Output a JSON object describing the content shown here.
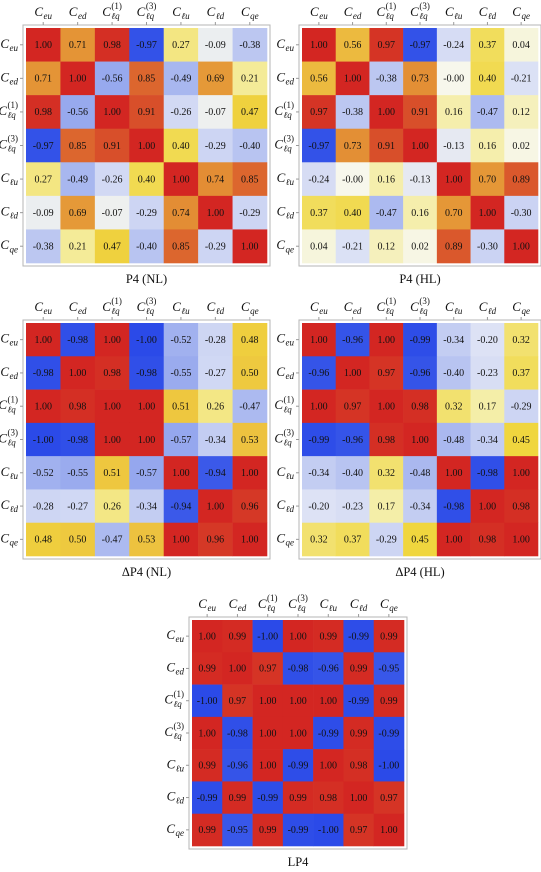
{
  "chart_data": [
    {
      "type": "heatmap",
      "title": "P4 (NL)",
      "x_labels": [
        [
          "C",
          "eu"
        ],
        [
          "C",
          "ed"
        ],
        [
          "C",
          "ℓq",
          "(1)"
        ],
        [
          "C",
          "ℓq",
          "(3)"
        ],
        [
          "C",
          "ℓu"
        ],
        [
          "C",
          "ℓd"
        ],
        [
          "C",
          "qe"
        ]
      ],
      "y_labels": [
        [
          "C",
          "eu"
        ],
        [
          "C",
          "ed"
        ],
        [
          "C",
          "ℓq",
          "(1)"
        ],
        [
          "C",
          "ℓq",
          "(3)"
        ],
        [
          "C",
          "ℓu"
        ],
        [
          "C",
          "ℓd"
        ],
        [
          "C",
          "qe"
        ]
      ],
      "values": [
        [
          1.0,
          0.71,
          0.98,
          -0.97,
          0.27,
          -0.09,
          -0.38
        ],
        [
          0.71,
          1.0,
          -0.56,
          0.85,
          -0.49,
          0.69,
          0.21
        ],
        [
          0.98,
          -0.56,
          1.0,
          0.91,
          -0.26,
          -0.07,
          0.47
        ],
        [
          -0.97,
          0.85,
          0.91,
          1.0,
          0.4,
          -0.29,
          -0.4
        ],
        [
          0.27,
          -0.49,
          -0.26,
          0.4,
          1.0,
          0.74,
          0.85
        ],
        [
          -0.09,
          0.69,
          -0.07,
          -0.29,
          0.74,
          1.0,
          -0.29
        ],
        [
          -0.38,
          0.21,
          0.47,
          -0.4,
          0.85,
          -0.29,
          1.0
        ]
      ],
      "value_labels": [
        [
          "1.00",
          "0.71",
          "0.98",
          "-0.97",
          "0.27",
          "-0.09",
          "-0.38"
        ],
        [
          "0.71",
          "1.00",
          "-0.56",
          "0.85",
          "-0.49",
          "0.69",
          "0.21"
        ],
        [
          "0.98",
          "-0.56",
          "1.00",
          "0.91",
          "-0.26",
          "-0.07",
          "0.47"
        ],
        [
          "-0.97",
          "0.85",
          "0.91",
          "1.00",
          "0.40",
          "-0.29",
          "-0.40"
        ],
        [
          "0.27",
          "-0.49",
          "-0.26",
          "0.40",
          "1.00",
          "0.74",
          "0.85"
        ],
        [
          "-0.09",
          "0.69",
          "-0.07",
          "-0.29",
          "0.74",
          "1.00",
          "-0.29"
        ],
        [
          "-0.38",
          "0.21",
          "0.47",
          "-0.40",
          "0.85",
          "-0.29",
          "1.00"
        ]
      ],
      "colorscale": [
        [
          -1,
          "#2b4ae8"
        ],
        [
          -0.9,
          "#4563e9"
        ],
        [
          -0.5,
          "#a6b5ef"
        ],
        [
          -0.2,
          "#dde2f5"
        ],
        [
          0,
          "#f7f7ec"
        ],
        [
          0.2,
          "#f4ec9c"
        ],
        [
          0.45,
          "#f0d63e"
        ],
        [
          0.6,
          "#eab040"
        ],
        [
          0.75,
          "#e28a33"
        ],
        [
          0.9,
          "#d9542b"
        ],
        [
          1,
          "#d32622"
        ]
      ]
    },
    {
      "type": "heatmap",
      "title": "P4 (HL)",
      "x_labels": [
        [
          "C",
          "eu"
        ],
        [
          "C",
          "ed"
        ],
        [
          "C",
          "ℓq",
          "(1)"
        ],
        [
          "C",
          "ℓq",
          "(3)"
        ],
        [
          "C",
          "ℓu"
        ],
        [
          "C",
          "ℓd"
        ],
        [
          "C",
          "qe"
        ]
      ],
      "y_labels": [
        [
          "C",
          "eu"
        ],
        [
          "C",
          "ed"
        ],
        [
          "C",
          "ℓq",
          "(1)"
        ],
        [
          "C",
          "ℓq",
          "(3)"
        ],
        [
          "C",
          "ℓu"
        ],
        [
          "C",
          "ℓd"
        ],
        [
          "C",
          "qe"
        ]
      ],
      "values": [
        [
          1.0,
          0.56,
          0.97,
          -0.97,
          -0.24,
          0.37,
          0.04
        ],
        [
          0.56,
          1.0,
          -0.38,
          0.73,
          -0.0,
          0.4,
          -0.21
        ],
        [
          0.97,
          -0.38,
          1.0,
          0.91,
          0.16,
          -0.47,
          0.12
        ],
        [
          -0.97,
          0.73,
          0.91,
          1.0,
          -0.13,
          0.16,
          0.02
        ],
        [
          -0.24,
          -0.0,
          0.16,
          -0.13,
          1.0,
          0.7,
          0.89
        ],
        [
          0.37,
          0.4,
          -0.47,
          0.16,
          0.7,
          1.0,
          -0.3
        ],
        [
          0.04,
          -0.21,
          0.12,
          0.02,
          0.89,
          -0.3,
          1.0
        ]
      ],
      "value_labels": [
        [
          "1.00",
          "0.56",
          "0.97",
          "-0.97",
          "-0.24",
          "0.37",
          "0.04"
        ],
        [
          "0.56",
          "1.00",
          "-0.38",
          "0.73",
          "-0.00",
          "0.40",
          "-0.21"
        ],
        [
          "0.97",
          "-0.38",
          "1.00",
          "0.91",
          "0.16",
          "-0.47",
          "0.12"
        ],
        [
          "-0.97",
          "0.73",
          "0.91",
          "1.00",
          "-0.13",
          "0.16",
          "0.02"
        ],
        [
          "-0.24",
          "-0.00",
          "0.16",
          "-0.13",
          "1.00",
          "0.70",
          "0.89"
        ],
        [
          "0.37",
          "0.40",
          "-0.47",
          "0.16",
          "0.70",
          "1.00",
          "-0.30"
        ],
        [
          "0.04",
          "-0.21",
          "0.12",
          "0.02",
          "0.89",
          "-0.30",
          "1.00"
        ]
      ],
      "colorscale": [
        [
          -1,
          "#2b4ae8"
        ],
        [
          -0.9,
          "#4563e9"
        ],
        [
          -0.5,
          "#a6b5ef"
        ],
        [
          -0.2,
          "#dde2f5"
        ],
        [
          0,
          "#f7f7ec"
        ],
        [
          0.2,
          "#f4ec9c"
        ],
        [
          0.45,
          "#f0d63e"
        ],
        [
          0.6,
          "#eab040"
        ],
        [
          0.75,
          "#e28a33"
        ],
        [
          0.9,
          "#d9542b"
        ],
        [
          1,
          "#d32622"
        ]
      ]
    },
    {
      "type": "heatmap",
      "title": "ΔP4 (NL)",
      "x_labels": [
        [
          "C",
          "eu"
        ],
        [
          "C",
          "ed"
        ],
        [
          "C",
          "ℓq",
          "(1)"
        ],
        [
          "C",
          "ℓq",
          "(3)"
        ],
        [
          "C",
          "ℓu"
        ],
        [
          "C",
          "ℓd"
        ],
        [
          "C",
          "qe"
        ]
      ],
      "y_labels": [
        [
          "C",
          "eu"
        ],
        [
          "C",
          "ed"
        ],
        [
          "C",
          "ℓq",
          "(1)"
        ],
        [
          "C",
          "ℓq",
          "(3)"
        ],
        [
          "C",
          "ℓu"
        ],
        [
          "C",
          "ℓd"
        ],
        [
          "C",
          "qe"
        ]
      ],
      "values": [
        [
          1.0,
          -0.98,
          1.0,
          -1.0,
          -0.52,
          -0.28,
          0.48
        ],
        [
          -0.98,
          1.0,
          0.98,
          -0.98,
          -0.55,
          -0.27,
          0.5
        ],
        [
          1.0,
          0.98,
          1.0,
          1.0,
          0.51,
          0.26,
          -0.47
        ],
        [
          -1.0,
          -0.98,
          1.0,
          1.0,
          -0.57,
          -0.34,
          0.53
        ],
        [
          -0.52,
          -0.55,
          0.51,
          -0.57,
          1.0,
          -0.94,
          1.0
        ],
        [
          -0.28,
          -0.27,
          0.26,
          -0.34,
          -0.94,
          1.0,
          0.96
        ],
        [
          0.48,
          0.5,
          -0.47,
          0.53,
          1.0,
          0.96,
          1.0
        ]
      ],
      "value_labels": [
        [
          "1.00",
          "-0.98",
          "1.00",
          "-1.00",
          "-0.52",
          "-0.28",
          "0.48"
        ],
        [
          "-0.98",
          "1.00",
          "0.98",
          "-0.98",
          "-0.55",
          "-0.27",
          "0.50"
        ],
        [
          "1.00",
          "0.98",
          "1.00",
          "1.00",
          "0.51",
          "0.26",
          "-0.47"
        ],
        [
          "-1.00",
          "-0.98",
          "1.00",
          "1.00",
          "-0.57",
          "-0.34",
          "0.53"
        ],
        [
          "-0.52",
          "-0.55",
          "0.51",
          "-0.57",
          "1.00",
          "-0.94",
          "1.00"
        ],
        [
          "-0.28",
          "-0.27",
          "0.26",
          "-0.34",
          "-0.94",
          "1.00",
          "0.96"
        ],
        [
          "0.48",
          "0.50",
          "-0.47",
          "0.53",
          "1.00",
          "0.96",
          "1.00"
        ]
      ],
      "colorscale": [
        [
          -1,
          "#2b4ae8"
        ],
        [
          -0.9,
          "#4563e9"
        ],
        [
          -0.5,
          "#a6b5ef"
        ],
        [
          -0.2,
          "#dde2f5"
        ],
        [
          0,
          "#f7f7ec"
        ],
        [
          0.2,
          "#f4ec9c"
        ],
        [
          0.45,
          "#f0d63e"
        ],
        [
          0.6,
          "#eab040"
        ],
        [
          0.75,
          "#e28a33"
        ],
        [
          0.9,
          "#d9542b"
        ],
        [
          1,
          "#d32622"
        ]
      ]
    },
    {
      "type": "heatmap",
      "title": "ΔP4 (HL)",
      "x_labels": [
        [
          "C",
          "eu"
        ],
        [
          "C",
          "ed"
        ],
        [
          "C",
          "ℓq",
          "(1)"
        ],
        [
          "C",
          "ℓq",
          "(3)"
        ],
        [
          "C",
          "ℓu"
        ],
        [
          "C",
          "ℓd"
        ],
        [
          "C",
          "qe"
        ]
      ],
      "y_labels": [
        [
          "C",
          "eu"
        ],
        [
          "C",
          "ed"
        ],
        [
          "C",
          "ℓq",
          "(1)"
        ],
        [
          "C",
          "ℓq",
          "(3)"
        ],
        [
          "C",
          "ℓu"
        ],
        [
          "C",
          "ℓd"
        ],
        [
          "C",
          "qe"
        ]
      ],
      "values": [
        [
          1.0,
          -0.96,
          1.0,
          -0.99,
          -0.34,
          -0.2,
          0.32
        ],
        [
          -0.96,
          1.0,
          0.97,
          -0.96,
          -0.4,
          -0.23,
          0.37
        ],
        [
          1.0,
          0.97,
          1.0,
          0.98,
          0.32,
          0.17,
          -0.29
        ],
        [
          -0.99,
          -0.96,
          0.98,
          1.0,
          -0.48,
          -0.34,
          0.45
        ],
        [
          -0.34,
          -0.4,
          0.32,
          -0.48,
          1.0,
          -0.98,
          1.0
        ],
        [
          -0.2,
          -0.23,
          0.17,
          -0.34,
          -0.98,
          1.0,
          0.98
        ],
        [
          0.32,
          0.37,
          -0.29,
          0.45,
          1.0,
          0.98,
          1.0
        ]
      ],
      "value_labels": [
        [
          "1.00",
          "-0.96",
          "1.00",
          "-0.99",
          "-0.34",
          "-0.20",
          "0.32"
        ],
        [
          "-0.96",
          "1.00",
          "0.97",
          "-0.96",
          "-0.40",
          "-0.23",
          "0.37"
        ],
        [
          "1.00",
          "0.97",
          "1.00",
          "0.98",
          "0.32",
          "0.17",
          "-0.29"
        ],
        [
          "-0.99",
          "-0.96",
          "0.98",
          "1.00",
          "-0.48",
          "-0.34",
          "0.45"
        ],
        [
          "-0.34",
          "-0.40",
          "0.32",
          "-0.48",
          "1.00",
          "-0.98",
          "1.00"
        ],
        [
          "-0.20",
          "-0.23",
          "0.17",
          "-0.34",
          "-0.98",
          "1.00",
          "0.98"
        ],
        [
          "0.32",
          "0.37",
          "-0.29",
          "0.45",
          "1.00",
          "0.98",
          "1.00"
        ]
      ],
      "colorscale": [
        [
          -1,
          "#2b4ae8"
        ],
        [
          -0.9,
          "#4563e9"
        ],
        [
          -0.5,
          "#a6b5ef"
        ],
        [
          -0.2,
          "#dde2f5"
        ],
        [
          0,
          "#f7f7ec"
        ],
        [
          0.2,
          "#f4ec9c"
        ],
        [
          0.45,
          "#f0d63e"
        ],
        [
          0.6,
          "#eab040"
        ],
        [
          0.75,
          "#e28a33"
        ],
        [
          0.9,
          "#d9542b"
        ],
        [
          1,
          "#d32622"
        ]
      ]
    },
    {
      "type": "heatmap",
      "title": "LP4",
      "x_labels": [
        [
          "C",
          "eu"
        ],
        [
          "C",
          "ed"
        ],
        [
          "C",
          "ℓq",
          "(1)"
        ],
        [
          "C",
          "ℓq",
          "(3)"
        ],
        [
          "C",
          "ℓu"
        ],
        [
          "C",
          "ℓd"
        ],
        [
          "C",
          "qe"
        ]
      ],
      "y_labels": [
        [
          "C",
          "eu"
        ],
        [
          "C",
          "ed"
        ],
        [
          "C",
          "ℓq",
          "(1)"
        ],
        [
          "C",
          "ℓq",
          "(3)"
        ],
        [
          "C",
          "ℓu"
        ],
        [
          "C",
          "ℓd"
        ],
        [
          "C",
          "qe"
        ]
      ],
      "values": [
        [
          1.0,
          0.99,
          -1.0,
          1.0,
          0.99,
          -0.99,
          0.99
        ],
        [
          0.99,
          1.0,
          0.97,
          -0.98,
          -0.96,
          0.99,
          -0.95
        ],
        [
          -1.0,
          0.97,
          1.0,
          1.0,
          1.0,
          -0.99,
          0.99
        ],
        [
          1.0,
          -0.98,
          1.0,
          1.0,
          -0.99,
          0.99,
          -0.99
        ],
        [
          0.99,
          -0.96,
          1.0,
          -0.99,
          1.0,
          0.98,
          -1.0
        ],
        [
          -0.99,
          0.99,
          -0.99,
          0.99,
          0.98,
          1.0,
          0.97
        ],
        [
          0.99,
          -0.95,
          0.99,
          -0.99,
          -1.0,
          0.97,
          1.0
        ]
      ],
      "value_labels": [
        [
          "1.00",
          "0.99",
          "-1.00",
          "1.00",
          "0.99",
          "-0.99",
          "0.99"
        ],
        [
          "0.99",
          "1.00",
          "0.97",
          "-0.98",
          "-0.96",
          "0.99",
          "-0.95"
        ],
        [
          "-1.00",
          "0.97",
          "1.00",
          "1.00",
          "1.00",
          "-0.99",
          "0.99"
        ],
        [
          "1.00",
          "-0.98",
          "1.00",
          "1.00",
          "-0.99",
          "0.99",
          "-0.99"
        ],
        [
          "0.99",
          "-0.96",
          "1.00",
          "-0.99",
          "1.00",
          "0.98",
          "-1.00"
        ],
        [
          "-0.99",
          "0.99",
          "-0.99",
          "0.99",
          "0.98",
          "1.00",
          "0.97"
        ],
        [
          "0.99",
          "-0.95",
          "0.99",
          "-0.99",
          "-1.00",
          "0.97",
          "1.00"
        ]
      ],
      "colorscale": [
        [
          -1,
          "#2b4ae8"
        ],
        [
          -0.9,
          "#4563e9"
        ],
        [
          -0.5,
          "#a6b5ef"
        ],
        [
          -0.2,
          "#dde2f5"
        ],
        [
          0,
          "#f7f7ec"
        ],
        [
          0.2,
          "#f4ec9c"
        ],
        [
          0.45,
          "#f0d63e"
        ],
        [
          0.6,
          "#eab040"
        ],
        [
          0.75,
          "#e28a33"
        ],
        [
          0.9,
          "#d9542b"
        ],
        [
          1,
          "#d32622"
        ]
      ]
    }
  ]
}
